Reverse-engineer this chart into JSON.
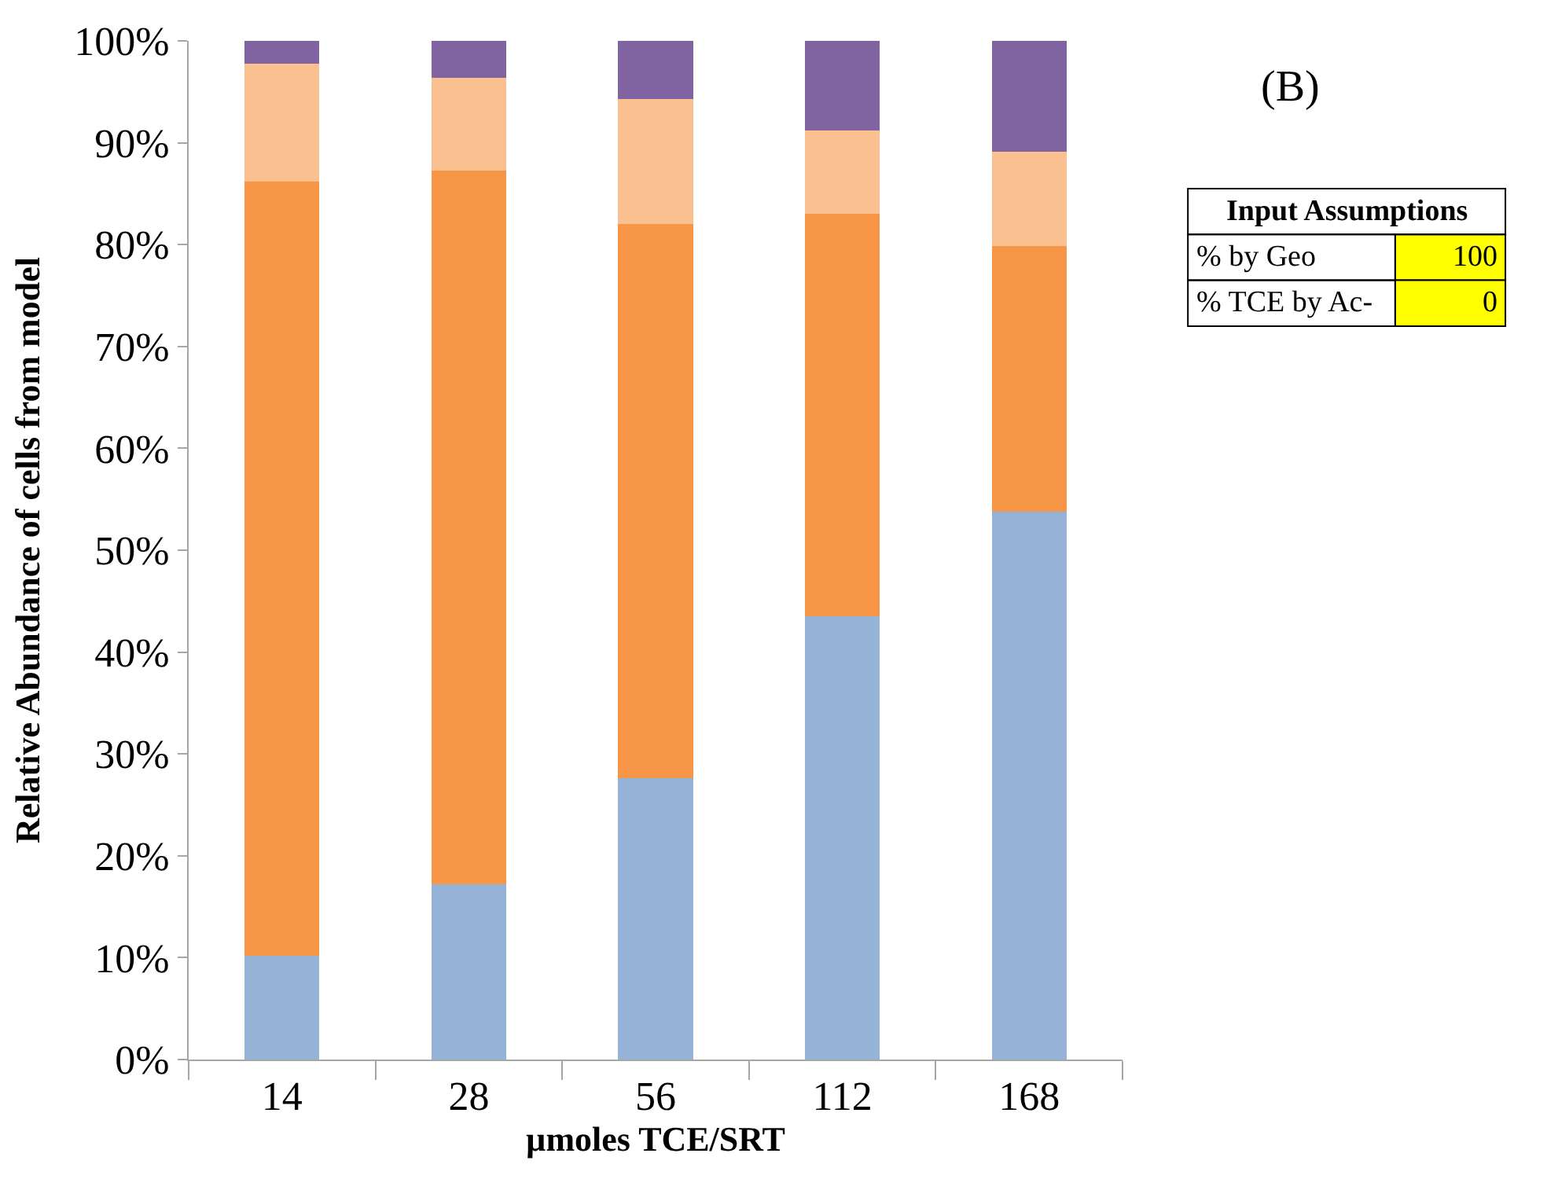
{
  "chart_data": {
    "type": "bar",
    "stacked": true,
    "xlabel": "µmoles TCE/SRT",
    "ylabel": "Relative Abundance of cells from model",
    "categories": [
      "14",
      "28",
      "56",
      "112",
      "168"
    ],
    "series": [
      {
        "color": "#95b3d7",
        "values": [
          10.2,
          17.2,
          27.6,
          43.5,
          53.8
        ]
      },
      {
        "color": "#f79646",
        "values": [
          76.0,
          70.1,
          54.4,
          39.5,
          26.1
        ]
      },
      {
        "color": "#fac090",
        "values": [
          11.6,
          9.1,
          12.3,
          8.2,
          9.2
        ]
      },
      {
        "color": "#8064a2",
        "values": [
          2.2,
          3.6,
          5.7,
          8.8,
          10.9
        ]
      }
    ],
    "ylim": [
      0,
      100
    ],
    "yticks": [
      {
        "value": 0,
        "label": "0%"
      },
      {
        "value": 10,
        "label": "10%"
      },
      {
        "value": 20,
        "label": "20%"
      },
      {
        "value": 30,
        "label": "30%"
      },
      {
        "value": 40,
        "label": "40%"
      },
      {
        "value": 50,
        "label": "50%"
      },
      {
        "value": 60,
        "label": "60%"
      },
      {
        "value": 70,
        "label": "70%"
      },
      {
        "value": 80,
        "label": "80%"
      },
      {
        "value": 90,
        "label": "90%"
      },
      {
        "value": 100,
        "label": "100%"
      }
    ],
    "annotations": [
      "(B)",
      "Input Assumptions",
      "% by Geo",
      "100",
      "% TCE by Ac-",
      "0"
    ]
  }
}
